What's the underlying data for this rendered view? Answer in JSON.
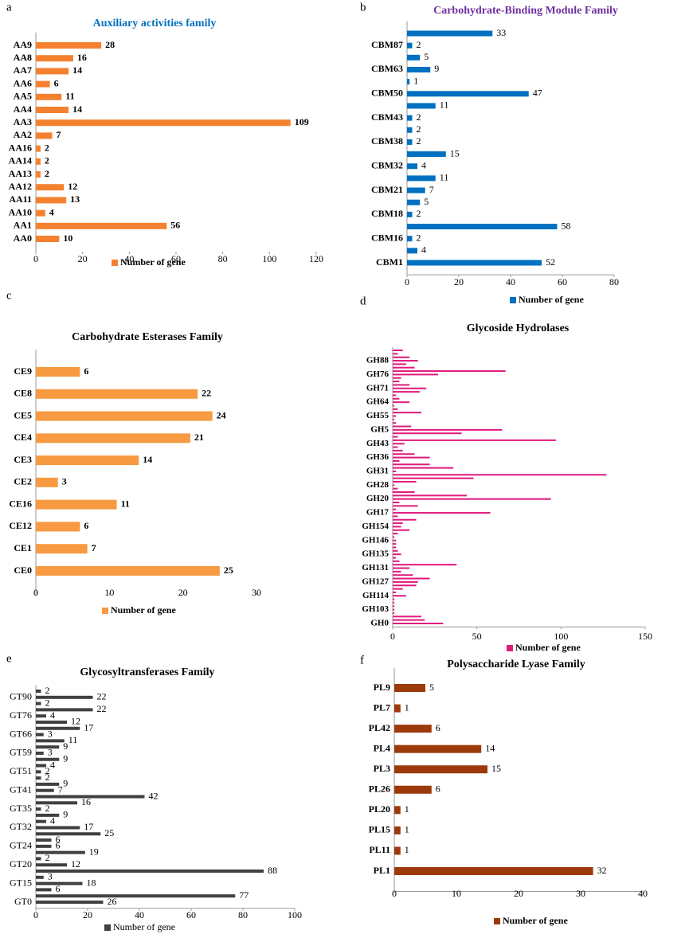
{
  "chart_data": [
    {
      "label": "a",
      "type": "bar",
      "orientation": "horizontal",
      "title": "Auxiliary activities family",
      "title_color": "#0070c0",
      "data_labels": true,
      "categories": [
        "AA9",
        "AA8",
        "AA7",
        "AA6",
        "AA5",
        "AA4",
        "AA3",
        "AA2",
        "AA16",
        "AA14",
        "AA13",
        "AA12",
        "AA11",
        "AA10",
        "AA1",
        "AA0"
      ],
      "series": [
        {
          "name": "Number of gene",
          "color": "#f4812f",
          "values": [
            28,
            16,
            14,
            6,
            11,
            14,
            109,
            7,
            2,
            2,
            2,
            12,
            13,
            4,
            56,
            10
          ]
        }
      ],
      "xlim": [
        0,
        120
      ],
      "xticks": [
        0,
        20,
        40,
        60,
        80,
        100,
        120
      ]
    },
    {
      "label": "b",
      "type": "bar",
      "orientation": "horizontal",
      "title": "Carbohydrate-Binding Module Family",
      "title_color": "#7030a0",
      "data_labels": true,
      "categories": [
        null,
        "CBM87",
        null,
        "CBM63",
        null,
        "CBM50",
        null,
        "CBM43",
        null,
        "CBM38",
        null,
        "CBM32",
        null,
        "CBM21",
        null,
        "CBM18",
        null,
        "CBM16",
        null,
        "CBM1"
      ],
      "series": [
        {
          "name": "Number of gene",
          "color": "#0070c0",
          "values": [
            33,
            2,
            5,
            9,
            1,
            47,
            11,
            2,
            2,
            2,
            15,
            4,
            11,
            7,
            5,
            2,
            58,
            2,
            4,
            52
          ]
        }
      ],
      "xlim": [
        0,
        80
      ],
      "xticks": [
        0,
        20,
        40,
        60,
        80
      ]
    },
    {
      "label": "c",
      "type": "bar",
      "orientation": "horizontal",
      "title": "Carbohydrate Esterases Family",
      "title_color": "#000000",
      "data_labels": true,
      "categories": [
        "CE9",
        "CE8",
        "CE5",
        "CE4",
        "CE3",
        "CE2",
        "CE16",
        "CE12",
        "CE1",
        "CE0"
      ],
      "series": [
        {
          "name": "Number of gene",
          "color": "#f79a42",
          "values": [
            6,
            22,
            24,
            21,
            14,
            3,
            11,
            6,
            7,
            25
          ]
        }
      ],
      "xlim": [
        0,
        30
      ],
      "xticks": [
        0,
        10,
        20,
        30
      ]
    },
    {
      "label": "d",
      "type": "bar",
      "orientation": "horizontal",
      "title": "Glycoside Hydrolases",
      "title_color": "#000000",
      "data_labels": false,
      "categories": [
        null,
        null,
        null,
        "GH88",
        null,
        null,
        null,
        "GH76",
        null,
        null,
        null,
        "GH71",
        null,
        null,
        null,
        "GH64",
        null,
        null,
        null,
        "GH55",
        null,
        null,
        null,
        "GH5",
        null,
        null,
        null,
        "GH43",
        null,
        null,
        null,
        "GH36",
        null,
        null,
        null,
        "GH31",
        null,
        null,
        null,
        "GH28",
        null,
        null,
        null,
        "GH20",
        null,
        null,
        null,
        "GH17",
        null,
        null,
        null,
        "GH154",
        null,
        null,
        null,
        "GH146",
        null,
        null,
        null,
        "GH135",
        null,
        null,
        null,
        "GH131",
        null,
        null,
        null,
        "GH127",
        null,
        null,
        null,
        "GH114",
        null,
        null,
        null,
        "GH103",
        null,
        null,
        null,
        "GH0"
      ],
      "series": [
        {
          "name": "Number of gene",
          "color": "#e0197d",
          "values": [
            6,
            3,
            10,
            15,
            8,
            13,
            67,
            27,
            5,
            4,
            10,
            20,
            16,
            2,
            4,
            10,
            1,
            3,
            17,
            2,
            1,
            2,
            11,
            65,
            41,
            3,
            97,
            7,
            3,
            6,
            13,
            22,
            4,
            22,
            36,
            2,
            127,
            48,
            14,
            1,
            3,
            13,
            44,
            94,
            4,
            15,
            2,
            58,
            3,
            14,
            6,
            5,
            10,
            3,
            1,
            2,
            2,
            2,
            3,
            5,
            2,
            4,
            38,
            10,
            5,
            12,
            22,
            15,
            14,
            6,
            2,
            8,
            1,
            1,
            1,
            1,
            1,
            17,
            19,
            30
          ]
        }
      ],
      "xlim": [
        0,
        150
      ],
      "xticks": [
        0,
        50,
        100,
        150
      ]
    },
    {
      "label": "e",
      "type": "bar",
      "orientation": "horizontal",
      "title": "Glycosyltransferases Family",
      "title_color": "#000000",
      "data_labels": true,
      "categories": [
        null,
        "GT90",
        null,
        null,
        "GT76",
        null,
        null,
        "GT66",
        null,
        null,
        "GT59",
        null,
        null,
        "GT51",
        null,
        null,
        "GT41",
        null,
        null,
        "GT35",
        null,
        null,
        "GT32",
        null,
        null,
        "GT24",
        null,
        null,
        "GT20",
        null,
        null,
        "GT15",
        null,
        null,
        "GT0"
      ],
      "series": [
        {
          "name": "Number of gene",
          "color": "#404040",
          "values": [
            2,
            22,
            2,
            22,
            4,
            12,
            17,
            3,
            11,
            9,
            3,
            9,
            4,
            2,
            2,
            9,
            7,
            42,
            16,
            2,
            9,
            4,
            17,
            25,
            6,
            6,
            19,
            2,
            12,
            88,
            3,
            18,
            6,
            77,
            26
          ]
        }
      ],
      "xlim": [
        0,
        100
      ],
      "xticks": [
        0,
        20,
        40,
        60,
        80,
        100
      ]
    },
    {
      "label": "f",
      "type": "bar",
      "orientation": "horizontal",
      "title": "Polysaccharide Lyase Family",
      "title_color": "#000000",
      "data_labels": true,
      "categories": [
        "PL9",
        "PL7",
        "PL42",
        "PL4",
        "PL3",
        "PL26",
        "PL20",
        "PL15",
        "PL11",
        "PL1"
      ],
      "series": [
        {
          "name": "Number of gene",
          "color": "#9c3a0c",
          "values": [
            5,
            1,
            6,
            14,
            15,
            6,
            1,
            1,
            1,
            32
          ]
        }
      ],
      "xlim": [
        0,
        40
      ],
      "xticks": [
        0,
        10,
        20,
        30,
        40
      ]
    }
  ]
}
